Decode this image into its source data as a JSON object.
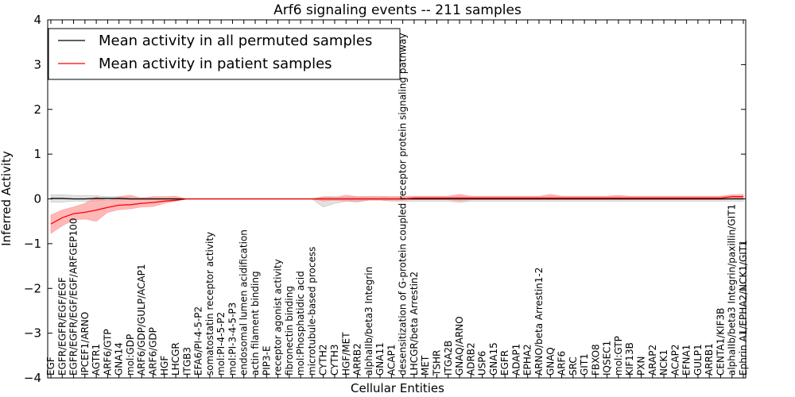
{
  "chart_data": {
    "type": "line",
    "title": "Arf6 signaling events -- 211 samples",
    "xlabel": "Cellular Entities",
    "ylabel": "Inferred Activity",
    "ylim": [
      -4,
      4
    ],
    "yticks": [
      4,
      3,
      2,
      1,
      0,
      -1,
      -2,
      -3,
      -4
    ],
    "ytick_labels": [
      "4",
      "3",
      "2",
      "1",
      "0",
      "−1",
      "−2",
      "−3",
      "−4"
    ],
    "grid": false,
    "legend_position": "top-left",
    "categories": [
      "EGF",
      "EGFR/EGFR/EGF/EGF",
      "EGFR/EGFR/EGF/EGF/ARFGEP100",
      "IPCEF1/ARNO",
      "AGTR1",
      "ARF6/GTP",
      "GNA14",
      "mol:GDP",
      "ARF6/GDP/GULP/ACAP1",
      "ARF6/GDP",
      "HGF",
      "LHCGR",
      "ITGB3",
      "EFA6/PI-4-5-P2",
      "somatostatin receptor activity",
      "mol:PI-4-5-P2",
      "mol:PI-3-4-5-P3",
      "endosomal lumen acidification",
      "actin filament binding",
      "PIP3-E",
      "receptor agonist activity",
      "fibronectin binding",
      "mol:Phosphatidic acid",
      "microtubule-based process",
      "CYTH2",
      "CYTH3",
      "HGF/MET",
      "ARRB2",
      "alphaIIb/beta3 Integrin",
      "GNA11",
      "ACAP1",
      "desensitization of G-protein coupled receptor protein signaling pathway",
      "LHCGR/beta Arrestin2",
      "MET",
      "TSHR",
      "ITGA2B",
      "GNAQ/ARNO",
      "ADRB2",
      "USP6",
      "GNA15",
      "EGFR",
      "ADAP1",
      "EPHA2",
      "ARNO/beta Arrestin1-2",
      "GNAQ",
      "ARF6",
      "SRC",
      "GIT1",
      "FBXO8",
      "IQSEC1",
      "mol:GTP",
      "KIF13B",
      "PXN",
      "ARAP2",
      "NCK1",
      "ACAP2",
      "EFNA1",
      "GULP1",
      "ARRB1",
      "CENTA1/KIF3B",
      "alphaIIb/beta3 Integrin/paxillin/GIT1",
      "Ephrin A1/EPHA2/NCK1/GIT1"
    ],
    "series": [
      {
        "name": "Mean activity in all permuted samples",
        "color": "#000000",
        "band_color": "#bfbfbf",
        "values": [
          0.01,
          0.01,
          0.0,
          0.0,
          0.01,
          0.01,
          0.01,
          0.0,
          0.0,
          0.0,
          0.0,
          0.0,
          0.0,
          0.0,
          0.0,
          0.0,
          0.0,
          0.0,
          0.0,
          0.0,
          0.0,
          0.0,
          0.0,
          0.0,
          0.0,
          0.0,
          0.0,
          0.0,
          0.0,
          0.0,
          0.0,
          0.0,
          0.0,
          0.0,
          0.0,
          0.0,
          0.0,
          0.0,
          0.0,
          0.0,
          0.0,
          0.0,
          0.0,
          0.0,
          0.0,
          0.0,
          0.0,
          0.0,
          0.0,
          0.0,
          0.0,
          0.0,
          0.0,
          0.0,
          0.0,
          0.0,
          0.0,
          0.0,
          0.0,
          0.0,
          0.0,
          0.0
        ],
        "lower": [
          -0.07,
          -0.07,
          -0.05,
          -0.05,
          -0.05,
          -0.03,
          -0.03,
          -0.02,
          -0.02,
          -0.02,
          -0.01,
          -0.01,
          0.0,
          0.0,
          0.0,
          0.0,
          0.0,
          0.0,
          0.0,
          0.0,
          0.0,
          0.0,
          0.0,
          0.0,
          -0.18,
          -0.1,
          -0.05,
          -0.07,
          -0.03,
          -0.03,
          -0.05,
          -0.05,
          -0.05,
          -0.05,
          -0.05,
          -0.05,
          -0.08,
          -0.05,
          -0.05,
          -0.05,
          -0.05,
          -0.05,
          -0.05,
          -0.05,
          -0.05,
          -0.05,
          -0.05,
          -0.05,
          -0.05,
          -0.05,
          -0.05,
          -0.05,
          -0.05,
          -0.05,
          -0.05,
          -0.05,
          -0.05,
          -0.05,
          -0.05,
          -0.05,
          -0.05,
          -0.05
        ],
        "upper": [
          0.09,
          0.09,
          0.08,
          0.07,
          0.07,
          0.05,
          0.05,
          0.03,
          0.03,
          0.03,
          0.02,
          0.02,
          0.0,
          0.0,
          0.0,
          0.0,
          0.0,
          0.0,
          0.0,
          0.0,
          0.0,
          0.0,
          0.0,
          0.0,
          0.05,
          0.05,
          0.04,
          0.05,
          0.03,
          0.03,
          0.05,
          0.05,
          0.05,
          0.05,
          0.05,
          0.05,
          0.05,
          0.05,
          0.05,
          0.05,
          0.05,
          0.05,
          0.05,
          0.05,
          0.05,
          0.05,
          0.05,
          0.05,
          0.05,
          0.05,
          0.05,
          0.05,
          0.05,
          0.05,
          0.05,
          0.05,
          0.05,
          0.05,
          0.05,
          0.05,
          0.05,
          0.05
        ]
      },
      {
        "name": "Mean activity in patient samples",
        "color": "#ff0000",
        "band_color": "#ff9a9a",
        "values": [
          -0.56,
          -0.42,
          -0.33,
          -0.3,
          -0.25,
          -0.19,
          -0.14,
          -0.13,
          -0.1,
          -0.08,
          -0.05,
          -0.03,
          0.0,
          0.0,
          0.0,
          0.0,
          0.0,
          0.0,
          0.0,
          0.0,
          0.0,
          0.0,
          0.0,
          0.0,
          0.0,
          0.0,
          0.0,
          0.0,
          0.0,
          0.0,
          0.0,
          0.0,
          0.02,
          0.02,
          0.02,
          0.02,
          0.02,
          0.02,
          0.02,
          0.02,
          0.02,
          0.02,
          0.02,
          0.02,
          0.02,
          0.02,
          0.02,
          0.02,
          0.02,
          0.02,
          0.02,
          0.02,
          0.02,
          0.02,
          0.02,
          0.02,
          0.02,
          0.02,
          0.02,
          0.02,
          0.05,
          0.05
        ],
        "lower": [
          -0.77,
          -0.6,
          -0.47,
          -0.45,
          -0.5,
          -0.3,
          -0.24,
          -0.22,
          -0.18,
          -0.17,
          -0.1,
          -0.05,
          0.0,
          0.0,
          0.0,
          0.0,
          0.0,
          0.0,
          0.0,
          0.0,
          0.0,
          0.0,
          0.0,
          0.0,
          -0.05,
          -0.03,
          -0.05,
          -0.05,
          -0.03,
          -0.03,
          -0.03,
          -0.03,
          -0.02,
          -0.02,
          -0.02,
          -0.02,
          -0.05,
          -0.02,
          -0.02,
          -0.02,
          -0.02,
          -0.02,
          -0.02,
          -0.02,
          -0.02,
          -0.02,
          -0.02,
          -0.02,
          -0.02,
          -0.02,
          -0.02,
          -0.02,
          -0.02,
          -0.02,
          -0.02,
          -0.02,
          -0.02,
          -0.02,
          -0.02,
          -0.02,
          0.0,
          0.0
        ],
        "upper": [
          -0.36,
          -0.25,
          -0.18,
          -0.1,
          0.05,
          -0.05,
          0.05,
          0.08,
          0.02,
          0.05,
          0.05,
          0.06,
          0.0,
          0.0,
          0.0,
          0.0,
          0.0,
          0.0,
          0.0,
          0.0,
          0.0,
          0.0,
          0.0,
          0.0,
          0.05,
          0.03,
          0.08,
          0.05,
          0.06,
          0.06,
          0.05,
          0.05,
          0.06,
          0.06,
          0.06,
          0.06,
          0.1,
          0.06,
          0.06,
          0.06,
          0.06,
          0.06,
          0.06,
          0.06,
          0.1,
          0.06,
          0.06,
          0.06,
          0.06,
          0.06,
          0.08,
          0.06,
          0.06,
          0.06,
          0.06,
          0.06,
          0.06,
          0.06,
          0.06,
          0.06,
          0.09,
          0.1
        ]
      }
    ]
  }
}
